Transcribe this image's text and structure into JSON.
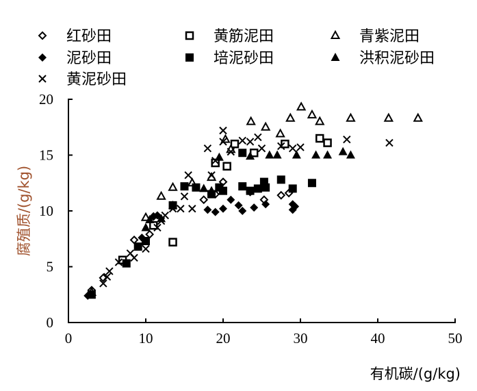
{
  "chart_data": {
    "type": "scatter",
    "title": "",
    "xlabel": "有机碳/(g/kg)",
    "ylabel": "腐殖质/(g/kg)",
    "xlim": [
      0,
      50
    ],
    "ylim": [
      0,
      20
    ],
    "xticks": [
      "0",
      "10",
      "20",
      "30",
      "40",
      "50"
    ],
    "yticks": [
      "0",
      "5",
      "10",
      "15",
      "20"
    ],
    "grid": false,
    "legend_position": "top",
    "ylabel_color": "#a0522d",
    "series": [
      {
        "name": "红砂田",
        "marker": "diamond-open",
        "points": [
          [
            3,
            2.9
          ],
          [
            4.5,
            4
          ],
          [
            8.5,
            7.4
          ],
          [
            10.5,
            7.9
          ],
          [
            11,
            9.5
          ],
          [
            17.5,
            11
          ],
          [
            19,
            11.5
          ],
          [
            20,
            12.6
          ],
          [
            23.5,
            11.7
          ],
          [
            25.3,
            11
          ],
          [
            27.5,
            11.4
          ],
          [
            28.5,
            11.6
          ]
        ]
      },
      {
        "name": "黄筋泥田",
        "marker": "square-open",
        "points": [
          [
            7,
            5.6
          ],
          [
            11,
            8.7
          ],
          [
            13.5,
            7.2
          ],
          [
            19,
            14.3
          ],
          [
            20.5,
            14
          ],
          [
            21.5,
            16
          ],
          [
            24,
            15.2
          ],
          [
            28,
            16
          ],
          [
            32.5,
            16.5
          ],
          [
            33.5,
            16.1
          ]
        ]
      },
      {
        "name": "青紫泥田",
        "marker": "triangle-open",
        "points": [
          [
            3,
            2.7
          ],
          [
            10,
            9.4
          ],
          [
            12,
            11.3
          ],
          [
            13.5,
            12.1
          ],
          [
            16,
            12.5
          ],
          [
            18.5,
            13
          ],
          [
            20.3,
            16.4
          ],
          [
            21,
            15.5
          ],
          [
            23.6,
            18
          ],
          [
            25.5,
            17.5
          ],
          [
            27.4,
            16.9
          ],
          [
            28.7,
            18.3
          ],
          [
            30.1,
            19.3
          ],
          [
            31.5,
            18.6
          ],
          [
            32.5,
            18
          ],
          [
            36.5,
            18.3
          ],
          [
            41.4,
            18.3
          ],
          [
            45.2,
            18.3
          ]
        ]
      },
      {
        "name": "泥砂田",
        "marker": "diamond-filled",
        "points": [
          [
            2.5,
            2.4
          ],
          [
            9.5,
            7.6
          ],
          [
            11,
            9.5
          ],
          [
            11.5,
            9.6
          ],
          [
            18,
            10.1
          ],
          [
            19,
            9.9
          ],
          [
            20,
            10.2
          ],
          [
            21,
            11
          ],
          [
            22,
            10.5
          ],
          [
            22.5,
            10
          ],
          [
            24,
            10.3
          ],
          [
            25.5,
            10.6
          ],
          [
            29,
            10.1
          ],
          [
            29.3,
            10.4
          ],
          [
            29,
            10.6
          ]
        ]
      },
      {
        "name": "培泥砂田",
        "marker": "square-filled",
        "points": [
          [
            3,
            2.5
          ],
          [
            7.5,
            5.3
          ],
          [
            9,
            6.8
          ],
          [
            10,
            7.3
          ],
          [
            13.5,
            10.5
          ],
          [
            15,
            12.2
          ],
          [
            16.5,
            12.1
          ],
          [
            18.5,
            11.5
          ],
          [
            19.5,
            12.1
          ],
          [
            20,
            11.8
          ],
          [
            22.5,
            15.2
          ],
          [
            22.5,
            12.2
          ],
          [
            23.5,
            11.8
          ],
          [
            24.5,
            12
          ],
          [
            25.3,
            12.6
          ],
          [
            25.5,
            12.1
          ],
          [
            27.5,
            12.8
          ],
          [
            29,
            12
          ],
          [
            31.5,
            12.5
          ]
        ]
      },
      {
        "name": "洪积泥砂田",
        "marker": "triangle-filled",
        "points": [
          [
            10,
            8.5
          ],
          [
            10.5,
            9.2
          ],
          [
            12,
            9.3
          ],
          [
            13.5,
            10.5
          ],
          [
            17.5,
            12
          ],
          [
            18.5,
            11.8
          ],
          [
            19.5,
            14.8
          ],
          [
            23.5,
            14.9
          ],
          [
            26,
            15
          ],
          [
            27,
            15
          ],
          [
            29.5,
            15
          ],
          [
            32,
            15
          ],
          [
            33.5,
            15
          ],
          [
            35.5,
            15.3
          ],
          [
            36.5,
            15
          ]
        ]
      },
      {
        "name": "黄泥砂田",
        "marker": "x",
        "points": [
          [
            4.5,
            3.5
          ],
          [
            5,
            4.1
          ],
          [
            5.3,
            4.6
          ],
          [
            6.5,
            5.4
          ],
          [
            8,
            6.2
          ],
          [
            8.5,
            5.8
          ],
          [
            10,
            6.6
          ],
          [
            11.5,
            8.5
          ],
          [
            12,
            9.1
          ],
          [
            12.5,
            9.6
          ],
          [
            13.5,
            10.2
          ],
          [
            14.5,
            10.2
          ],
          [
            16,
            10.2
          ],
          [
            15,
            11.3
          ],
          [
            15.5,
            13.2
          ],
          [
            18.5,
            13.2
          ],
          [
            19,
            14.5
          ],
          [
            18,
            15.6
          ],
          [
            20,
            16.2
          ],
          [
            20,
            17.2
          ],
          [
            21,
            15.3
          ],
          [
            22.5,
            16.3
          ],
          [
            23.5,
            16.2
          ],
          [
            24.5,
            16.6
          ],
          [
            25,
            15.6
          ],
          [
            27.5,
            15.8
          ],
          [
            29,
            15.6
          ],
          [
            30,
            15.7
          ],
          [
            36,
            16.4
          ],
          [
            41.5,
            16.1
          ]
        ]
      }
    ]
  }
}
